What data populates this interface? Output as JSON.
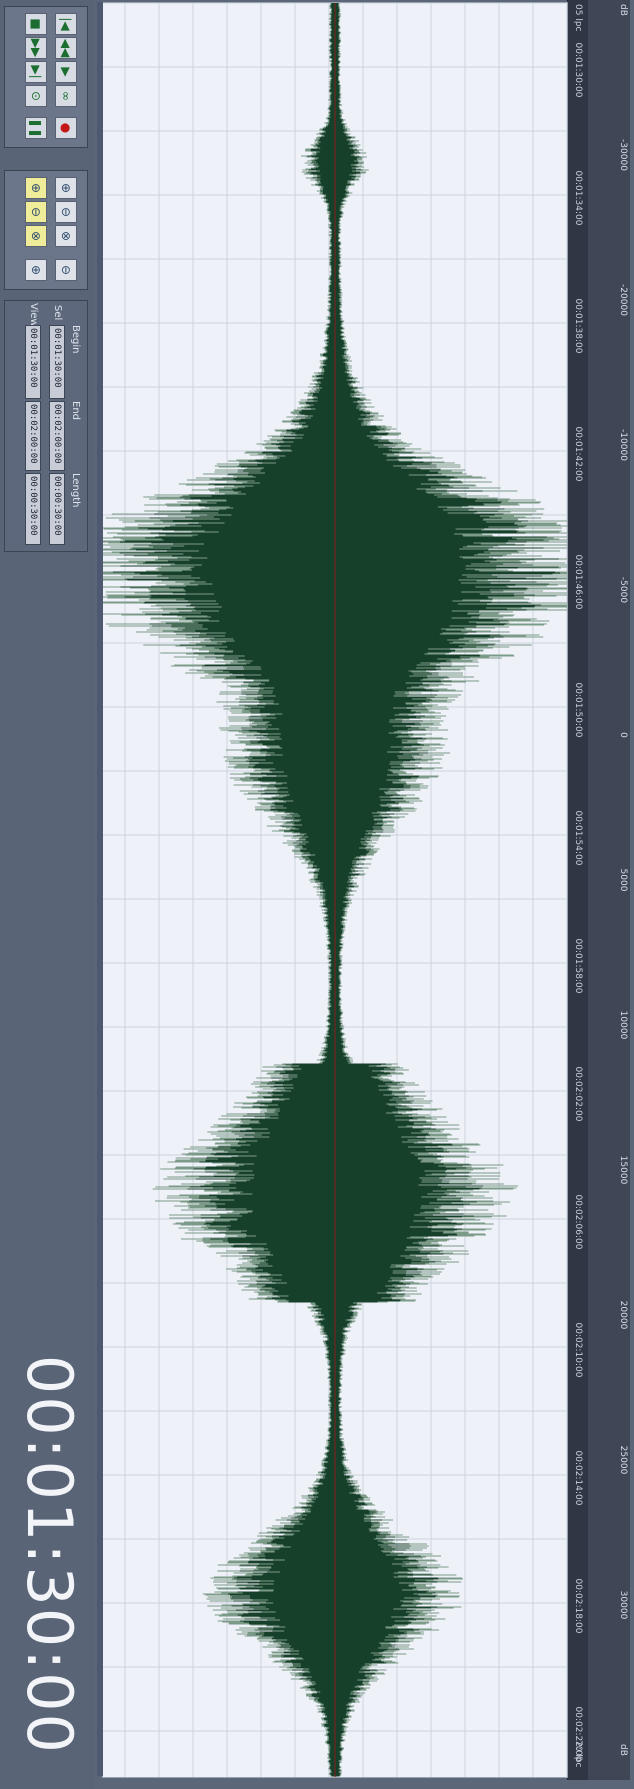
{
  "amplitude_ruler": {
    "labels": [
      "dB",
      "-30000",
      "-20000",
      "-10000",
      "-5000",
      "0",
      "5000",
      "10000",
      "15000",
      "20000",
      "25000",
      "30000",
      "dB"
    ]
  },
  "time_ruler": {
    "start_label": "05 lpc",
    "end_label": "70 lpc",
    "labels": [
      "00:01:30:00",
      "00:01:34:00",
      "00:01:38:00",
      "00:01:42:00",
      "00:01:46:00",
      "00:01:50:00",
      "00:01:54:00",
      "00:01:58:00",
      "00:02:02:00",
      "00:02:06:00",
      "00:02:10:00",
      "00:02:14:00",
      "00:02:18:00",
      "00:02:22:00"
    ]
  },
  "transport": {
    "buttons": [
      "rewind-to-start",
      "previous",
      "play",
      "stop",
      "next",
      "loop",
      "record"
    ]
  },
  "zoom": {
    "buttons": [
      "zoom-in-horizontal",
      "zoom-out-horizontal",
      "zoom-in-vertical",
      "zoom-out-vertical",
      "zoom-full",
      "zoom-selection"
    ]
  },
  "selection": {
    "begin_label": "Begin",
    "end_label": "End",
    "length_label": "Length",
    "sel_label": "Sel",
    "view_label": "View",
    "sel_begin": "00:01:30:00",
    "sel_end": "00:02:00:00",
    "sel_length": "00:00:30:00",
    "view_begin": "00:01:30:00",
    "view_end": "00:02:00:00",
    "view_length": "00:00:30:00"
  },
  "time_display": "00:01:30:00",
  "colors": {
    "waveform": "#16402a",
    "waveform_light": "#7c9a88",
    "background": "#eef1f7",
    "grid": "#cdd3de"
  }
}
